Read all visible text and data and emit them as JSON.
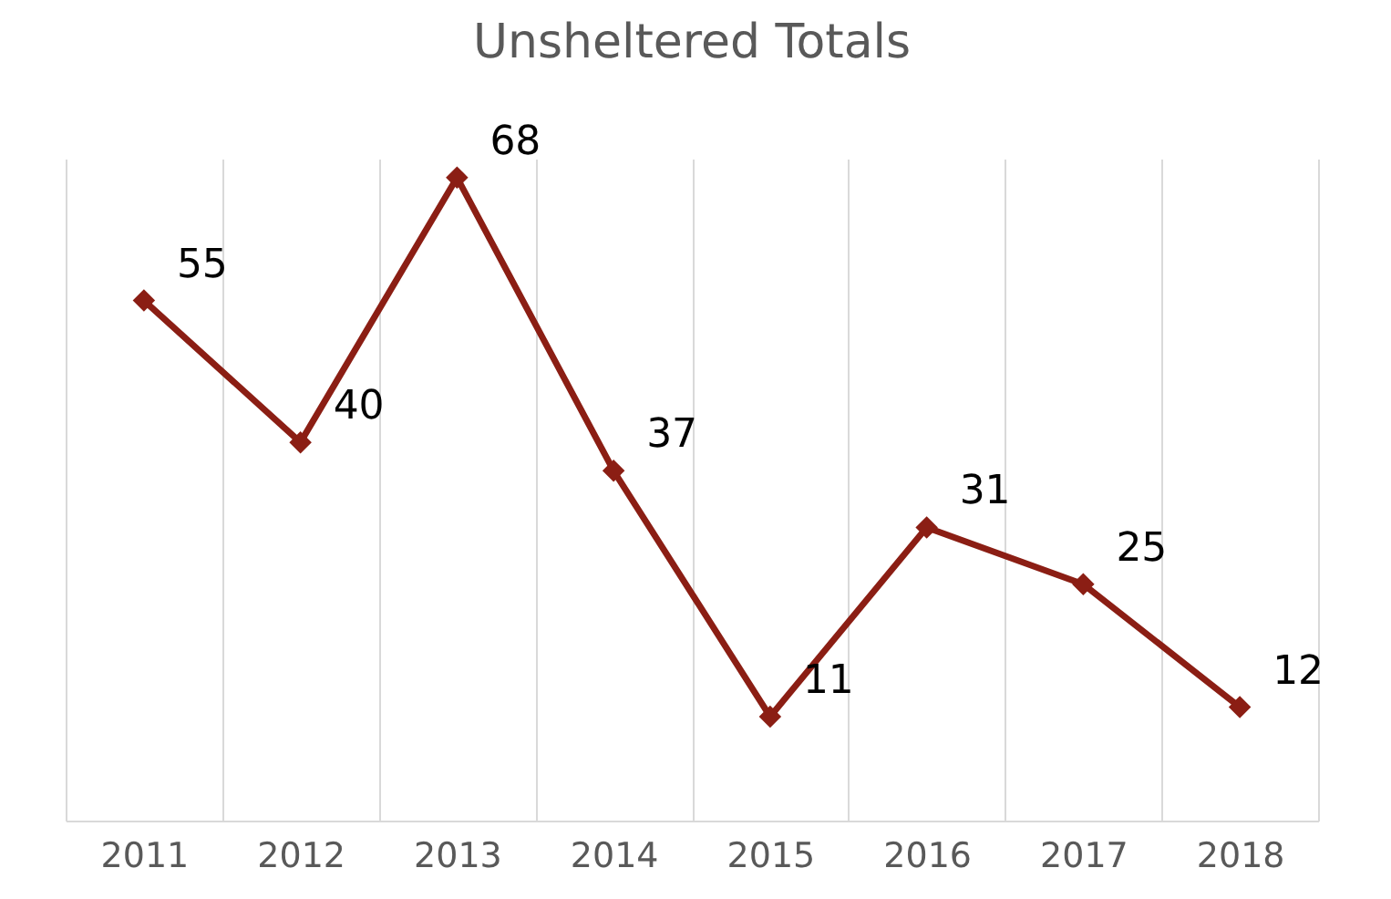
{
  "chart_data": {
    "type": "line",
    "title": "Unsheltered Totals",
    "categories": [
      "2011",
      "2012",
      "2013",
      "2014",
      "2015",
      "2016",
      "2017",
      "2018"
    ],
    "series": [
      {
        "color": "#8b1e14",
        "values": [
          55,
          40,
          68,
          37,
          11,
          31,
          25,
          12
        ]
      }
    ],
    "data_labels": true,
    "grid": "x",
    "marker": "diamond",
    "tick_labels": "x",
    "line_style": "solid"
  }
}
